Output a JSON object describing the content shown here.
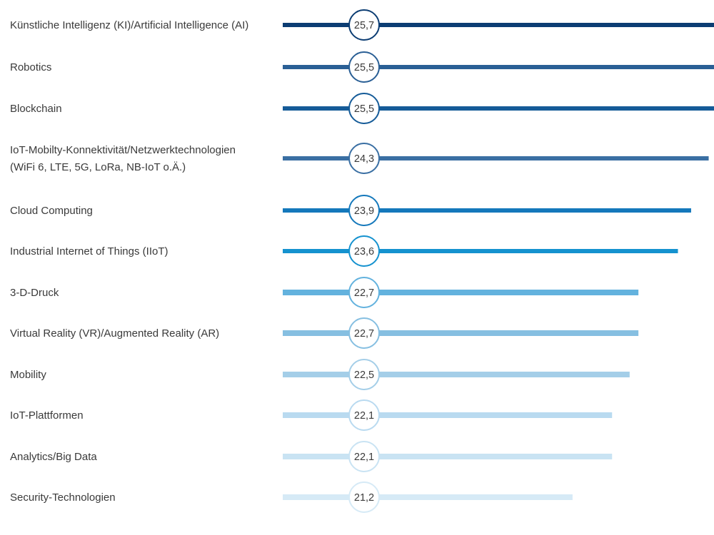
{
  "chart_data": {
    "type": "bar",
    "orientation": "horizontal",
    "categories": [
      [
        "Künstliche Intelligenz (KI)/Artificial Intelligence (AI)"
      ],
      [
        "Robotics"
      ],
      [
        "Blockchain"
      ],
      [
        "IoT-Mobilty-Konnektivität/Netzwerktechnologien",
        "(WiFi 6, LTE, 5G, LoRa, NB-IoT o.Ä.)"
      ],
      [
        "Cloud Computing"
      ],
      [
        "Industrial Internet of Things (IIoT)"
      ],
      [
        "3-D-Druck"
      ],
      [
        "Virtual Reality (VR)/Augmented Reality (AR)"
      ],
      [
        "Mobility"
      ],
      [
        "IoT-Plattformen"
      ],
      [
        "Analytics/Big Data"
      ],
      [
        "Security-Technologien"
      ]
    ],
    "values": [
      25.7,
      25.5,
      25.5,
      24.3,
      23.9,
      23.6,
      22.7,
      22.7,
      22.5,
      22.1,
      22.1,
      21.2
    ],
    "value_labels": [
      "25,7",
      "25,5",
      "25,5",
      "24,3",
      "23,9",
      "23,6",
      "22,7",
      "22,7",
      "22,5",
      "22,1",
      "22,1",
      "21,2"
    ],
    "colors": [
      "#0c3d73",
      "#2a5f95",
      "#155b98",
      "#3a6fa3",
      "#1478bb",
      "#1592cf",
      "#63b2de",
      "#86bfe1",
      "#a4cee8",
      "#b9daf0",
      "#c9e3f3",
      "#d6eaf6"
    ],
    "xlim": [
      14.6,
      24.2
    ],
    "title": "",
    "xlabel": "",
    "ylabel": "",
    "grid": false,
    "legend": "none"
  }
}
